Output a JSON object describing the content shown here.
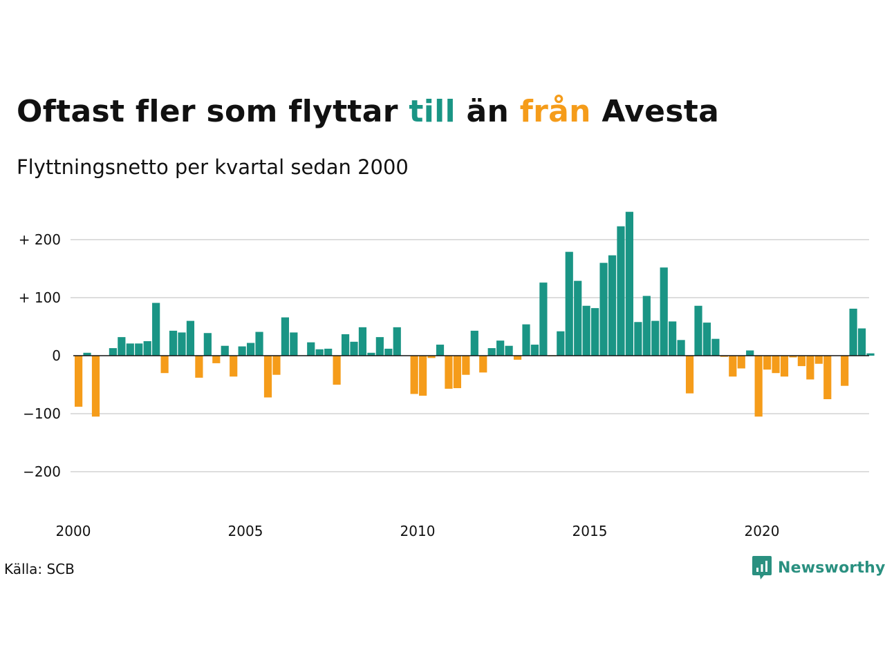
{
  "title": {
    "part1": "Oftast fler som flyttar ",
    "part2": "till",
    "part3": " än ",
    "part4": "från",
    "part5": " Avesta"
  },
  "subtitle": "Flyttningsnetto per kvartal sedan 2000",
  "source": "Källa: SCB",
  "logo": {
    "text": "Newsworthy",
    "icon": "newsworthy-logo-icon"
  },
  "colors": {
    "positive": "#1a9585",
    "negative": "#f59c1a",
    "grid": "#dddddd",
    "zero_line": "#111111",
    "text": "#111111"
  },
  "chart_data": {
    "type": "bar",
    "title": "Oftast fler som flyttar till än från Avesta",
    "subtitle": "Flyttningsnetto per kvartal sedan 2000",
    "x_start": "2000 Q1",
    "x_end": "2023 Q1",
    "xticks": [
      {
        "value": 2000,
        "label": "2000"
      },
      {
        "value": 2005,
        "label": "2005"
      },
      {
        "value": 2010,
        "label": "2010"
      },
      {
        "value": 2015,
        "label": "2015"
      },
      {
        "value": 2020,
        "label": "2020"
      }
    ],
    "yticks": [
      {
        "value": 200,
        "label": "+ 200"
      },
      {
        "value": 100,
        "label": "+ 100"
      },
      {
        "value": 0,
        "label": "0"
      },
      {
        "value": -100,
        "label": "−100"
      },
      {
        "value": -200,
        "label": "−200"
      }
    ],
    "ylim": [
      -270,
      250
    ],
    "grid": true,
    "bars": [
      {
        "quarter": "2000 Q1",
        "value": -88
      },
      {
        "quarter": "2000 Q2",
        "value": 5
      },
      {
        "quarter": "2000 Q3",
        "value": -105
      },
      {
        "quarter": "2000 Q4",
        "value": 0
      },
      {
        "quarter": "2001 Q1",
        "value": 13
      },
      {
        "quarter": "2001 Q2",
        "value": 32
      },
      {
        "quarter": "2001 Q3",
        "value": 21
      },
      {
        "quarter": "2001 Q4",
        "value": 21
      },
      {
        "quarter": "2002 Q1",
        "value": 25
      },
      {
        "quarter": "2002 Q2",
        "value": 91
      },
      {
        "quarter": "2002 Q3",
        "value": -30
      },
      {
        "quarter": "2002 Q4",
        "value": 43
      },
      {
        "quarter": "2003 Q1",
        "value": 40
      },
      {
        "quarter": "2003 Q2",
        "value": 60
      },
      {
        "quarter": "2003 Q3",
        "value": -38
      },
      {
        "quarter": "2003 Q4",
        "value": 39
      },
      {
        "quarter": "2004 Q1",
        "value": -13
      },
      {
        "quarter": "2004 Q2",
        "value": 17
      },
      {
        "quarter": "2004 Q3",
        "value": -36
      },
      {
        "quarter": "2004 Q4",
        "value": 16
      },
      {
        "quarter": "2005 Q1",
        "value": 22
      },
      {
        "quarter": "2005 Q2",
        "value": 41
      },
      {
        "quarter": "2005 Q3",
        "value": -72
      },
      {
        "quarter": "2005 Q4",
        "value": -33
      },
      {
        "quarter": "2006 Q1",
        "value": 66
      },
      {
        "quarter": "2006 Q2",
        "value": 40
      },
      {
        "quarter": "2006 Q3",
        "value": 0
      },
      {
        "quarter": "2006 Q4",
        "value": 23
      },
      {
        "quarter": "2007 Q1",
        "value": 11
      },
      {
        "quarter": "2007 Q2",
        "value": 12
      },
      {
        "quarter": "2007 Q3",
        "value": -50
      },
      {
        "quarter": "2007 Q4",
        "value": 37
      },
      {
        "quarter": "2008 Q1",
        "value": 24
      },
      {
        "quarter": "2008 Q2",
        "value": 49
      },
      {
        "quarter": "2008 Q3",
        "value": 5
      },
      {
        "quarter": "2008 Q4",
        "value": 32
      },
      {
        "quarter": "2009 Q1",
        "value": 12
      },
      {
        "quarter": "2009 Q2",
        "value": 49
      },
      {
        "quarter": "2009 Q3",
        "value": 0
      },
      {
        "quarter": "2009 Q4",
        "value": -66
      },
      {
        "quarter": "2010 Q1",
        "value": -69
      },
      {
        "quarter": "2010 Q2",
        "value": -4
      },
      {
        "quarter": "2010 Q3",
        "value": 19
      },
      {
        "quarter": "2010 Q4",
        "value": -57
      },
      {
        "quarter": "2011 Q1",
        "value": -56
      },
      {
        "quarter": "2011 Q2",
        "value": -33
      },
      {
        "quarter": "2011 Q3",
        "value": 43
      },
      {
        "quarter": "2011 Q4",
        "value": -29
      },
      {
        "quarter": "2012 Q1",
        "value": 13
      },
      {
        "quarter": "2012 Q2",
        "value": 26
      },
      {
        "quarter": "2012 Q3",
        "value": 17
      },
      {
        "quarter": "2012 Q4",
        "value": -7
      },
      {
        "quarter": "2013 Q1",
        "value": 54
      },
      {
        "quarter": "2013 Q2",
        "value": 19
      },
      {
        "quarter": "2013 Q3",
        "value": 126
      },
      {
        "quarter": "2013 Q4",
        "value": -1
      },
      {
        "quarter": "2014 Q1",
        "value": 42
      },
      {
        "quarter": "2014 Q2",
        "value": 179
      },
      {
        "quarter": "2014 Q3",
        "value": 129
      },
      {
        "quarter": "2014 Q4",
        "value": 86
      },
      {
        "quarter": "2015 Q1",
        "value": 82
      },
      {
        "quarter": "2015 Q2",
        "value": 160
      },
      {
        "quarter": "2015 Q3",
        "value": 173
      },
      {
        "quarter": "2015 Q4",
        "value": 223
      },
      {
        "quarter": "2016 Q1",
        "value": 248
      },
      {
        "quarter": "2016 Q2",
        "value": 58
      },
      {
        "quarter": "2016 Q3",
        "value": 103
      },
      {
        "quarter": "2016 Q4",
        "value": 60
      },
      {
        "quarter": "2017 Q1",
        "value": 152
      },
      {
        "quarter": "2017 Q2",
        "value": 59
      },
      {
        "quarter": "2017 Q3",
        "value": 27
      },
      {
        "quarter": "2017 Q4",
        "value": -65
      },
      {
        "quarter": "2018 Q1",
        "value": 86
      },
      {
        "quarter": "2018 Q2",
        "value": 57
      },
      {
        "quarter": "2018 Q3",
        "value": 29
      },
      {
        "quarter": "2018 Q4",
        "value": -2
      },
      {
        "quarter": "2019 Q1",
        "value": -36
      },
      {
        "quarter": "2019 Q2",
        "value": -22
      },
      {
        "quarter": "2019 Q3",
        "value": 9
      },
      {
        "quarter": "2019 Q4",
        "value": -105
      },
      {
        "quarter": "2020 Q1",
        "value": -24
      },
      {
        "quarter": "2020 Q2",
        "value": -30
      },
      {
        "quarter": "2020 Q3",
        "value": -36
      },
      {
        "quarter": "2020 Q4",
        "value": -3
      },
      {
        "quarter": "2021 Q1",
        "value": -18
      },
      {
        "quarter": "2021 Q2",
        "value": -41
      },
      {
        "quarter": "2021 Q3",
        "value": -14
      },
      {
        "quarter": "2021 Q4",
        "value": -75
      },
      {
        "quarter": "2022 Q1",
        "value": 0
      },
      {
        "quarter": "2022 Q2",
        "value": -52
      },
      {
        "quarter": "2022 Q3",
        "value": 81
      },
      {
        "quarter": "2022 Q4",
        "value": 47
      },
      {
        "quarter": "2023 Q1",
        "value": 4
      }
    ]
  }
}
